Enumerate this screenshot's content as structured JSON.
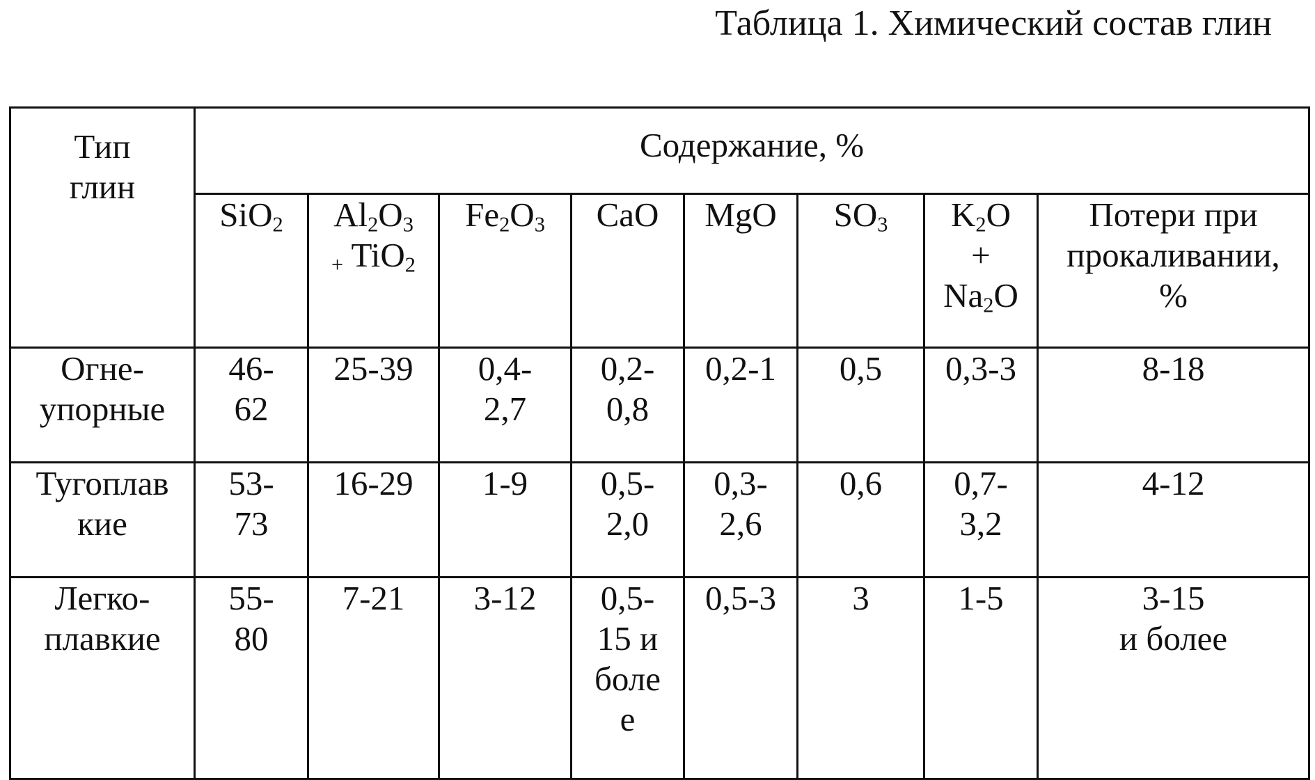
{
  "caption": "Таблица 1. Химический состав глин",
  "table": {
    "type_header": "Тип\nглин",
    "content_header": "Содержание, %",
    "columns": [
      {
        "parts": [
          {
            "t": "SiO"
          },
          {
            "s": "2"
          }
        ]
      },
      {
        "parts": [
          {
            "t": "Al"
          },
          {
            "s": "2"
          },
          {
            "t": "O"
          },
          {
            "s": "3"
          },
          {
            "t": "\n"
          },
          {
            "s": "+"
          },
          {
            "t": " TiO"
          },
          {
            "s": "2"
          }
        ]
      },
      {
        "parts": [
          {
            "t": "Fe"
          },
          {
            "s": "2"
          },
          {
            "t": "O"
          },
          {
            "s": "3"
          }
        ]
      },
      {
        "parts": [
          {
            "t": "CaO"
          }
        ]
      },
      {
        "parts": [
          {
            "t": "MgO"
          }
        ]
      },
      {
        "parts": [
          {
            "t": "SO"
          },
          {
            "s": "3"
          }
        ]
      },
      {
        "parts": [
          {
            "t": "K"
          },
          {
            "s": "2"
          },
          {
            "t": "O\n+\nNa"
          },
          {
            "s": "2"
          },
          {
            "t": "O"
          }
        ]
      },
      {
        "parts": [
          {
            "t": "Потери при\nпрокаливании,\n%"
          }
        ]
      }
    ],
    "rows": [
      {
        "type": "Огне-\nупорные",
        "values": [
          "46-\n62",
          "25-39",
          "0,4-\n2,7",
          "0,2-\n0,8",
          "0,2-1",
          "0,5",
          "0,3-3",
          "8-18"
        ]
      },
      {
        "type": "Тугоплав\nкие",
        "values": [
          "53-\n73",
          "16-29",
          "1-9",
          "0,5-\n2,0",
          "0,3-\n2,6",
          "0,6",
          "0,7-\n3,2",
          "4-12"
        ]
      },
      {
        "type": "Легко-\nплавкие",
        "values": [
          "55-\n80",
          "7-21",
          "3-12",
          "0,5-\n15 и\nболе\nе",
          "0,5-3",
          "3",
          "1-5",
          "3-15\nи более"
        ]
      }
    ]
  }
}
